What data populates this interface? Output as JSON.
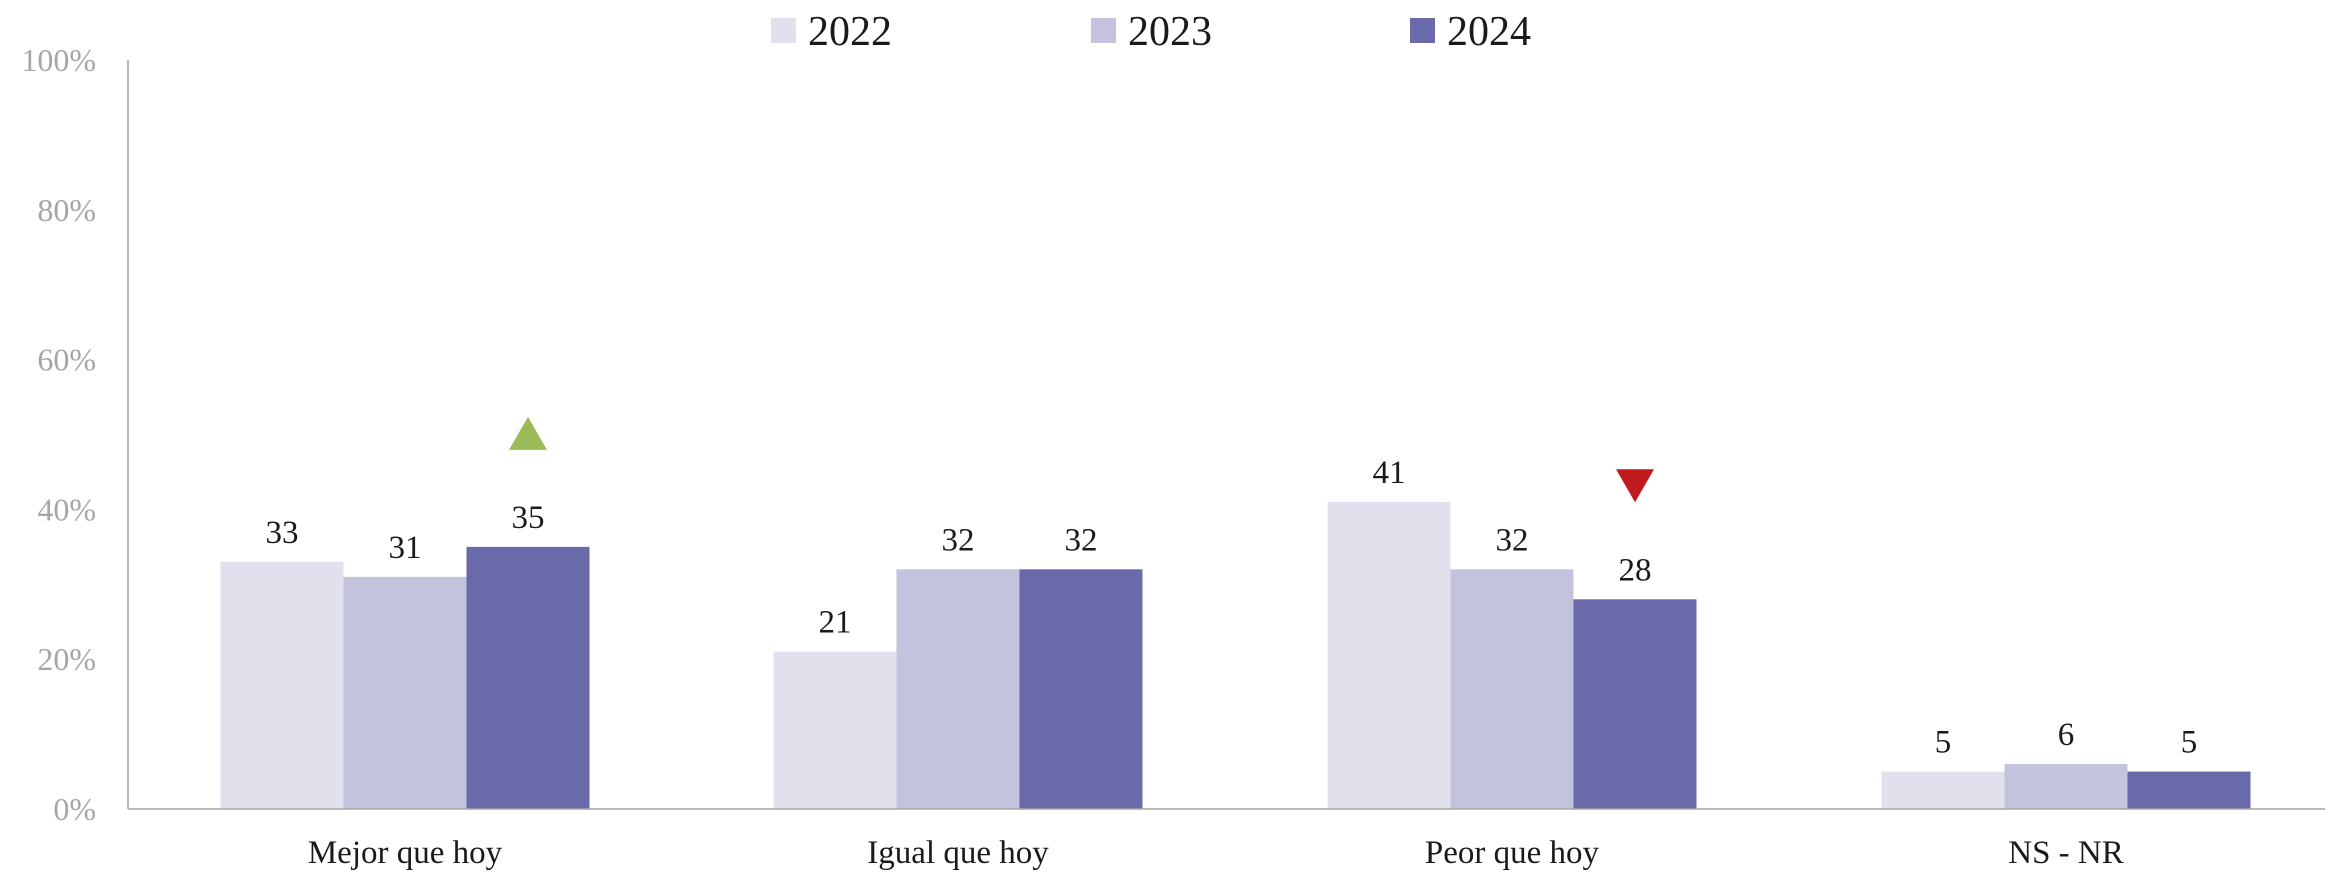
{
  "chart_data": {
    "type": "bar",
    "title": "",
    "xlabel": "",
    "ylabel": "",
    "ylim": [
      0,
      100
    ],
    "yticks": [
      "0%",
      "20%",
      "40%",
      "60%",
      "80%",
      "100%"
    ],
    "ytick_values": [
      0,
      20,
      40,
      60,
      80,
      100
    ],
    "grid": false,
    "legend_position": "top-center",
    "categories": [
      "Mejor que hoy",
      "Igual que hoy",
      "Peor que hoy",
      "NS - NR"
    ],
    "series": [
      {
        "name": "2022",
        "color": "#e1e1ee",
        "values": [
          33,
          21,
          41,
          5
        ],
        "labels": [
          "33",
          "21",
          "41",
          "5"
        ]
      },
      {
        "name": "2023",
        "color": "#c3c3de",
        "values": [
          31,
          32,
          32,
          6
        ],
        "labels": [
          "31",
          "32",
          "32",
          "6"
        ]
      },
      {
        "name": "2024",
        "color": "#6a69a9",
        "values": [
          35,
          32,
          28,
          5
        ],
        "labels": [
          "35",
          "32",
          "28",
          "5"
        ]
      }
    ],
    "annotations": [
      {
        "type": "up-triangle",
        "category": "Mejor que hoy",
        "series": "2024",
        "color": "#9bbb59"
      },
      {
        "type": "down-triangle",
        "category": "Peor que hoy",
        "series": "2024",
        "color": "#c0191e"
      }
    ]
  }
}
